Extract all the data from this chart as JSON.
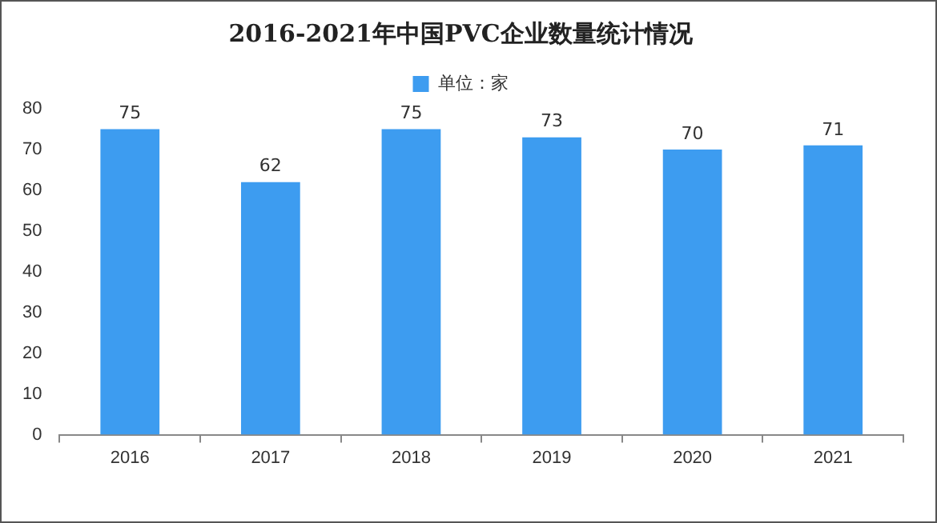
{
  "chart_data": {
    "type": "bar",
    "title": "2016-2021年中国PVC企业数量统计情况",
    "categories": [
      "2016",
      "2017",
      "2018",
      "2019",
      "2020",
      "2021"
    ],
    "series": [
      {
        "name": "单位：家",
        "color": "#3d9cf0",
        "values": [
          75,
          62,
          75,
          73,
          70,
          71
        ]
      }
    ],
    "ylim": [
      0,
      80
    ],
    "yticks": [
      0,
      10,
      20,
      30,
      40,
      50,
      60,
      70,
      80
    ],
    "grid": false,
    "legend": "top",
    "data_labels": true
  }
}
